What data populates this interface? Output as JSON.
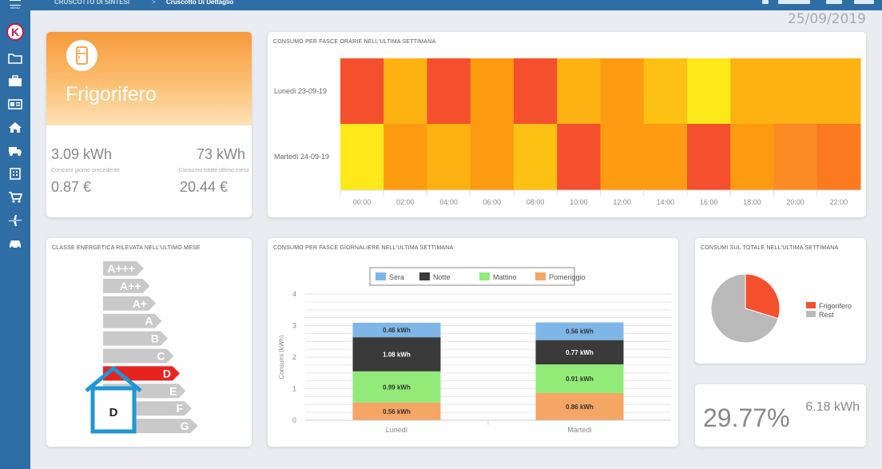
{
  "app": {
    "menu_label": "MENU",
    "logo_letter": "K"
  },
  "breadcrumb": {
    "item1": "CRUSCOTTO DI SINTESI",
    "separator": ">",
    "item2": "Cruscotto Di Dettaglio"
  },
  "header": {
    "date": "25/09/2019"
  },
  "sidebar": {
    "items": [
      {
        "icon": "folder-icon"
      },
      {
        "icon": "briefcase-icon"
      },
      {
        "icon": "id-card-icon"
      },
      {
        "icon": "home-icon"
      },
      {
        "icon": "truck-icon"
      },
      {
        "icon": "building-icon"
      },
      {
        "icon": "cart-icon"
      },
      {
        "icon": "plane-icon"
      },
      {
        "icon": "car-icon"
      }
    ]
  },
  "appliance": {
    "name": "Frigorifero",
    "kwh_prev_day": "3.09 kWh",
    "kwh_prev_day_label": "Consumi giorno precedente",
    "kwh_last_month": "73 kWh",
    "kwh_last_month_label": "Consumo totale ultimo mese",
    "eur_prev_day": "0.87 €",
    "eur_last_month": "20.44 €"
  },
  "heatmap": {
    "title": "CONSUMO PER FASCE ORARIE NELL'ULTIMA SETTIMANA",
    "rows": [
      "Lunedì 23-09-19",
      "Martedì 24-09-19"
    ],
    "columns": [
      "00:00",
      "02:00",
      "04:00",
      "06:00",
      "08:00",
      "10:00",
      "12:00",
      "14:00",
      "16:00",
      "18:00",
      "20:00",
      "22:00"
    ],
    "cells": [
      [
        "#f5502e",
        "#fdb212",
        "#f5502e",
        "#fc9b10",
        "#f5502e",
        "#fdb212",
        "#fc9b10",
        "#fdc114",
        "#fde81a",
        "#fdb212",
        "#fdb212",
        "#fdb212"
      ],
      [
        "#fde81a",
        "#fc9b10",
        "#fdb212",
        "#fc9b10",
        "#fdc114",
        "#f5502e",
        "#fc9b10",
        "#fc9b10",
        "#f5502e",
        "#fc9b10",
        "#fc8a24",
        "#fc7a1f"
      ]
    ]
  },
  "energy_class": {
    "title": "CLASSE ENERGETICA RILEVATA NELL'ULTIMO MESE",
    "classes": [
      "A+++",
      "A++",
      "A+",
      "A",
      "B",
      "C",
      "D",
      "E",
      "F",
      "G"
    ],
    "selected": "D",
    "selected_color": "#e8231e",
    "house_label": "D",
    "house_color": "#1f96d3"
  },
  "chart_data": [
    {
      "type": "bar",
      "title": "CONSUMO PER FASCE GIORNALIERE NELL'ULTIMA SETTIMANA",
      "categories": [
        "Lunedì",
        "Martedì"
      ],
      "ylabel": "Consumi (kWh)",
      "ylim": [
        0,
        4
      ],
      "yticks": [
        "0",
        "1",
        "2",
        "3",
        "4"
      ],
      "stacked": true,
      "legend": "top",
      "series": [
        {
          "name": "Pomeriggio",
          "color": "#f5a564",
          "values": [
            0.56,
            0.86
          ],
          "labels": [
            "0.56 kWh",
            "0.86 kWh"
          ]
        },
        {
          "name": "Mattino",
          "color": "#92eb78",
          "values": [
            0.99,
            0.91
          ],
          "labels": [
            "0.99 kWh",
            "0.91 kWh"
          ]
        },
        {
          "name": "Notte",
          "color": "#3a3a3a",
          "values": [
            1.08,
            0.77
          ],
          "labels": [
            "1.08 kWh",
            "0.77 kWh"
          ]
        },
        {
          "name": "Sera",
          "color": "#7fb6e8",
          "values": [
            0.46,
            0.56
          ],
          "labels": [
            "0.46 kWh",
            "0.56 kWh"
          ]
        }
      ],
      "legend_order": [
        "Sera",
        "Notte",
        "Mattino",
        "Pomeriggio"
      ]
    },
    {
      "type": "pie",
      "title": "CONSUMI SUL TOTALE NELL'ULTIMA SETTIMANA",
      "slices": [
        {
          "label": "Frigorifero",
          "value": 29.77,
          "color": "#f5502e"
        },
        {
          "label": "Rest",
          "value": 70.23,
          "color": "#b9b9b9"
        }
      ],
      "legend": "right"
    }
  ],
  "summary": {
    "percentage": "29.77%",
    "kwh": "6.18 kWh"
  }
}
